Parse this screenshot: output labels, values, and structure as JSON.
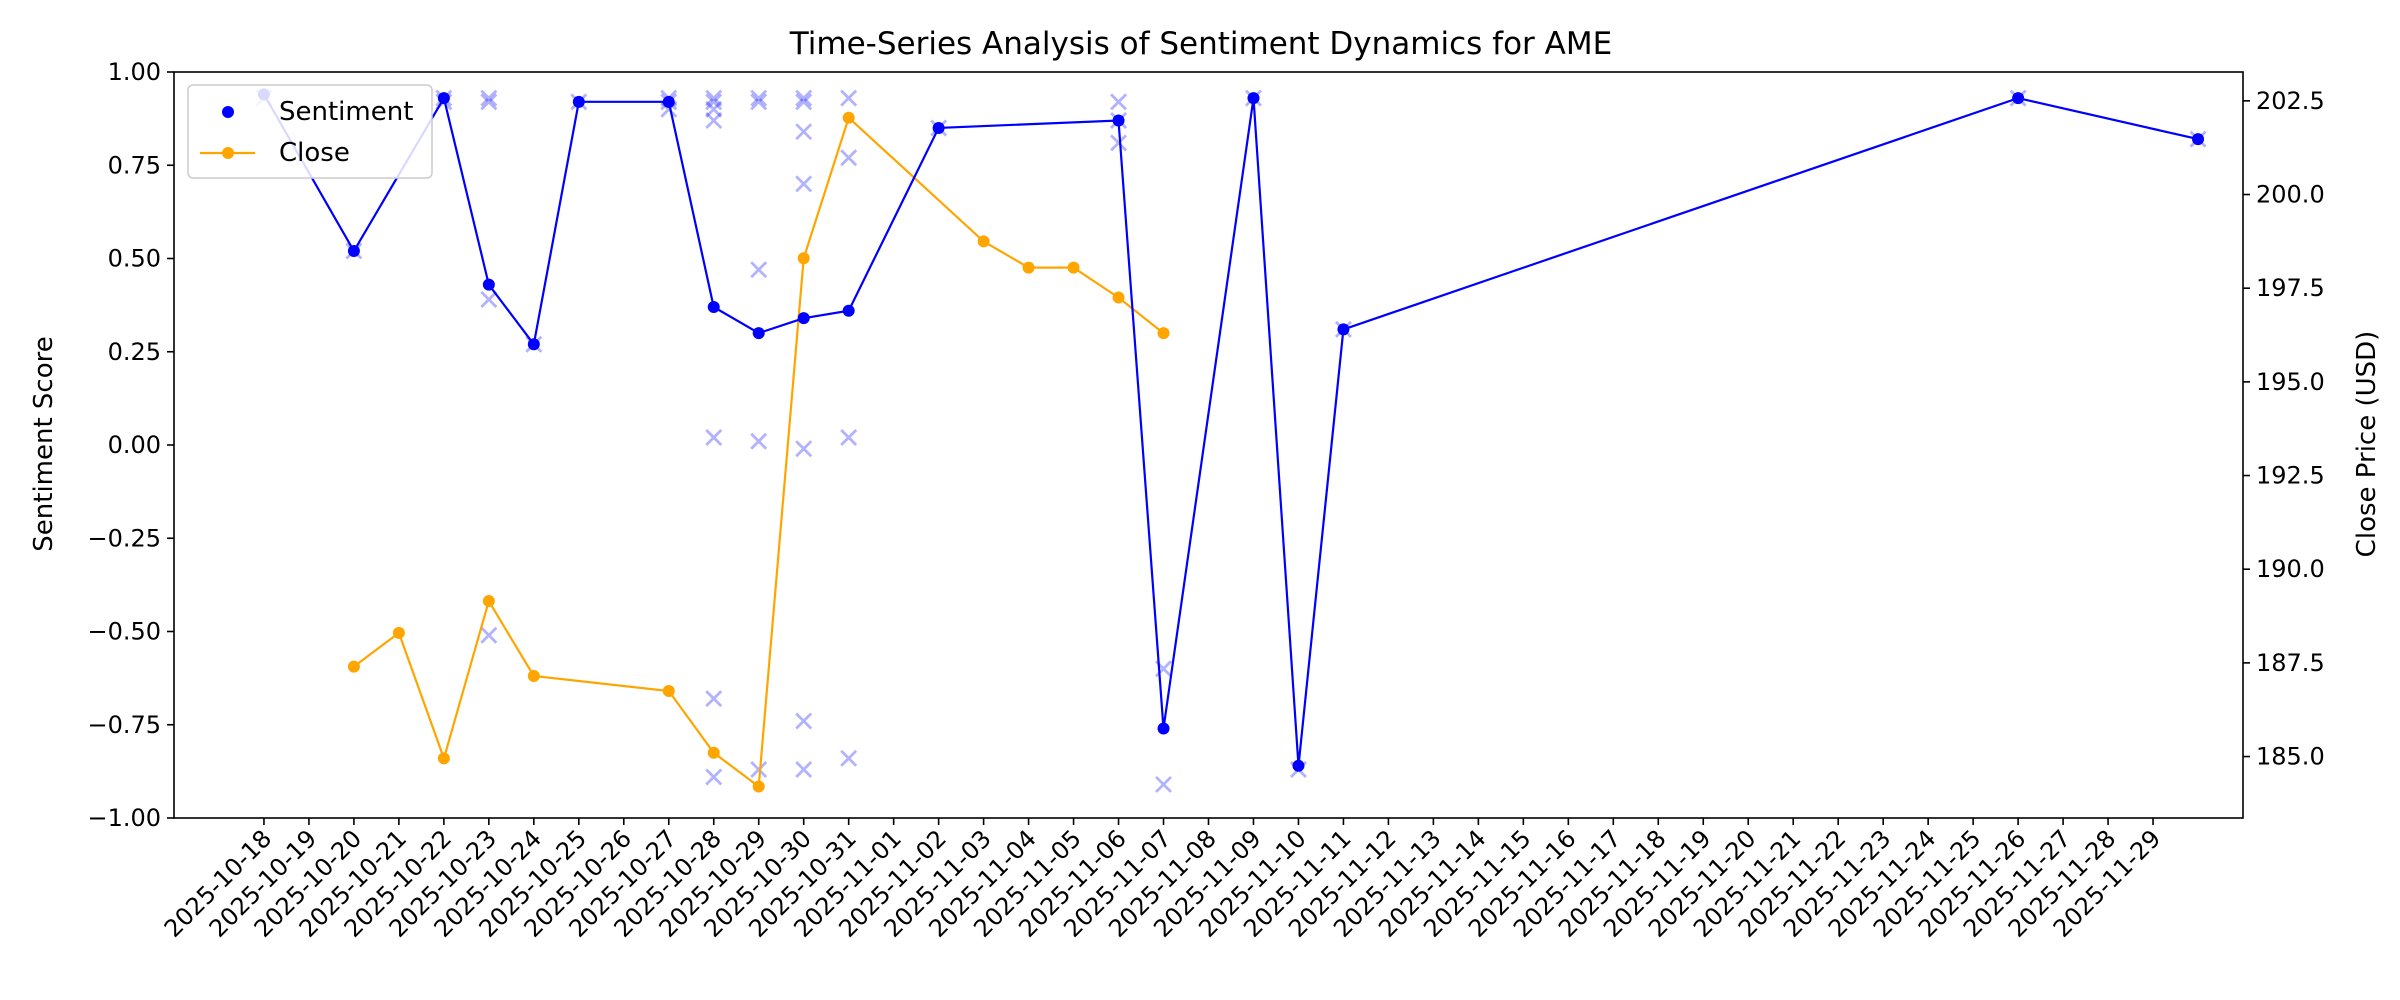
{
  "chart_data": {
    "type": "line",
    "title": "Time-Series Analysis of Sentiment Dynamics for AME",
    "ylabel": "Sentiment Score",
    "y2label": "Close Price (USD)",
    "xlim": [
      "2025-10-16",
      "2025-12-01"
    ],
    "ylim": [
      -1.0,
      1.0
    ],
    "y2lim": [
      183.36,
      203.27
    ],
    "grid": false,
    "legend_position": "top-left",
    "x_tick_labels": [
      "2025-10-18",
      "2025-10-19",
      "2025-10-20",
      "2025-10-21",
      "2025-10-22",
      "2025-10-23",
      "2025-10-24",
      "2025-10-25",
      "2025-10-26",
      "2025-10-27",
      "2025-10-28",
      "2025-10-29",
      "2025-10-30",
      "2025-10-31",
      "2025-11-01",
      "2025-11-02",
      "2025-11-03",
      "2025-11-04",
      "2025-11-05",
      "2025-11-06",
      "2025-11-07",
      "2025-11-08",
      "2025-11-09",
      "2025-11-10",
      "2025-11-11",
      "2025-11-12",
      "2025-11-13",
      "2025-11-14",
      "2025-11-15",
      "2025-11-16",
      "2025-11-17",
      "2025-11-18",
      "2025-11-19",
      "2025-11-20",
      "2025-11-21",
      "2025-11-22",
      "2025-11-23",
      "2025-11-24",
      "2025-11-25",
      "2025-11-26",
      "2025-11-27",
      "2025-11-28",
      "2025-11-29"
    ],
    "y_ticks": [
      "1.00",
      "0.75",
      "0.50",
      "0.25",
      "0.00",
      "−0.25",
      "−0.50",
      "−0.75",
      "−1.00"
    ],
    "y2_ticks": [
      "202.5",
      "200.0",
      "197.5",
      "195.0",
      "192.5",
      "190.0",
      "187.5",
      "185.0"
    ],
    "series": [
      {
        "name": "Sentiment",
        "color": "#0000ff",
        "x": [
          "2025-10-18",
          "2025-10-20",
          "2025-10-22",
          "2025-10-23",
          "2025-10-24",
          "2025-10-25",
          "2025-10-27",
          "2025-10-28",
          "2025-10-29",
          "2025-10-30",
          "2025-10-31",
          "2025-11-02",
          "2025-11-06",
          "2025-11-07",
          "2025-11-09",
          "2025-11-10",
          "2025-11-11",
          "2025-11-26",
          "2025-11-30"
        ],
        "y": [
          0.94,
          0.52,
          0.93,
          0.43,
          0.27,
          0.92,
          0.92,
          0.37,
          0.3,
          0.34,
          0.36,
          0.85,
          0.87,
          -0.76,
          0.93,
          -0.86,
          0.31,
          0.93,
          0.82
        ]
      },
      {
        "name": "Close",
        "color": "#ffa500",
        "x": [
          "2025-10-20",
          "2025-10-21",
          "2025-10-22",
          "2025-10-23",
          "2025-10-24",
          "2025-10-27",
          "2025-10-28",
          "2025-10-29",
          "2025-10-30",
          "2025-10-31",
          "2025-11-03",
          "2025-11-04",
          "2025-11-05",
          "2025-11-06",
          "2025-11-07"
        ],
        "y": [
          187.4,
          188.3,
          184.95,
          189.15,
          187.15,
          186.75,
          185.1,
          184.2,
          198.3,
          202.05,
          198.75,
          198.05,
          198.05,
          197.25,
          196.3
        ]
      }
    ],
    "raw_scores": {
      "color": "#0000ff",
      "x": [
        "2025-10-18",
        "2025-10-20",
        "2025-10-22",
        "2025-10-22",
        "2025-10-23",
        "2025-10-23",
        "2025-10-23",
        "2025-10-23",
        "2025-10-24",
        "2025-10-25",
        "2025-10-27",
        "2025-10-27",
        "2025-10-27",
        "2025-10-28",
        "2025-10-28",
        "2025-10-28",
        "2025-10-28",
        "2025-10-28",
        "2025-10-28",
        "2025-10-28",
        "2025-10-29",
        "2025-10-29",
        "2025-10-29",
        "2025-10-29",
        "2025-10-29",
        "2025-10-30",
        "2025-10-30",
        "2025-10-30",
        "2025-10-30",
        "2025-10-30",
        "2025-10-30",
        "2025-10-30",
        "2025-10-31",
        "2025-10-31",
        "2025-10-31",
        "2025-10-31",
        "2025-11-02",
        "2025-11-06",
        "2025-11-06",
        "2025-11-06",
        "2025-11-07",
        "2025-11-07",
        "2025-11-09",
        "2025-11-10",
        "2025-11-11",
        "2025-11-26",
        "2025-11-30"
      ],
      "y": [
        0.93,
        0.52,
        0.93,
        0.92,
        0.93,
        0.92,
        0.39,
        -0.51,
        0.27,
        0.92,
        0.93,
        0.92,
        0.9,
        0.93,
        0.92,
        0.9,
        0.87,
        0.02,
        -0.68,
        -0.89,
        0.93,
        0.92,
        0.47,
        0.01,
        -0.87,
        0.93,
        0.92,
        0.84,
        0.7,
        -0.01,
        -0.74,
        -0.87,
        0.93,
        0.77,
        0.02,
        -0.84,
        0.85,
        0.92,
        0.81,
        0.87,
        -0.6,
        -0.91,
        0.93,
        -0.87,
        0.31,
        0.93,
        0.82
      ]
    }
  }
}
